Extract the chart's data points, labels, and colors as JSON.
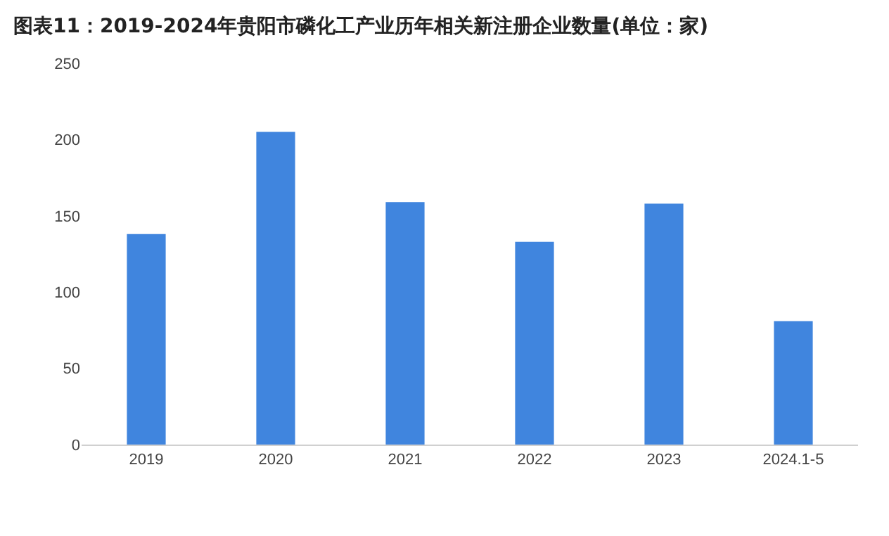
{
  "chart_data": {
    "type": "bar",
    "title": "图表11：2019-2024年贵阳市磷化工产业历年相关新注册企业数量(单位：家)",
    "categories": [
      "2019",
      "2020",
      "2021",
      "2022",
      "2023",
      "2024.1-5"
    ],
    "values": [
      138,
      205,
      159,
      133,
      158,
      81
    ],
    "color": "#4085de",
    "ylim": [
      0,
      250
    ],
    "yticks": [
      0,
      50,
      100,
      150,
      200,
      250
    ],
    "grid": false
  }
}
